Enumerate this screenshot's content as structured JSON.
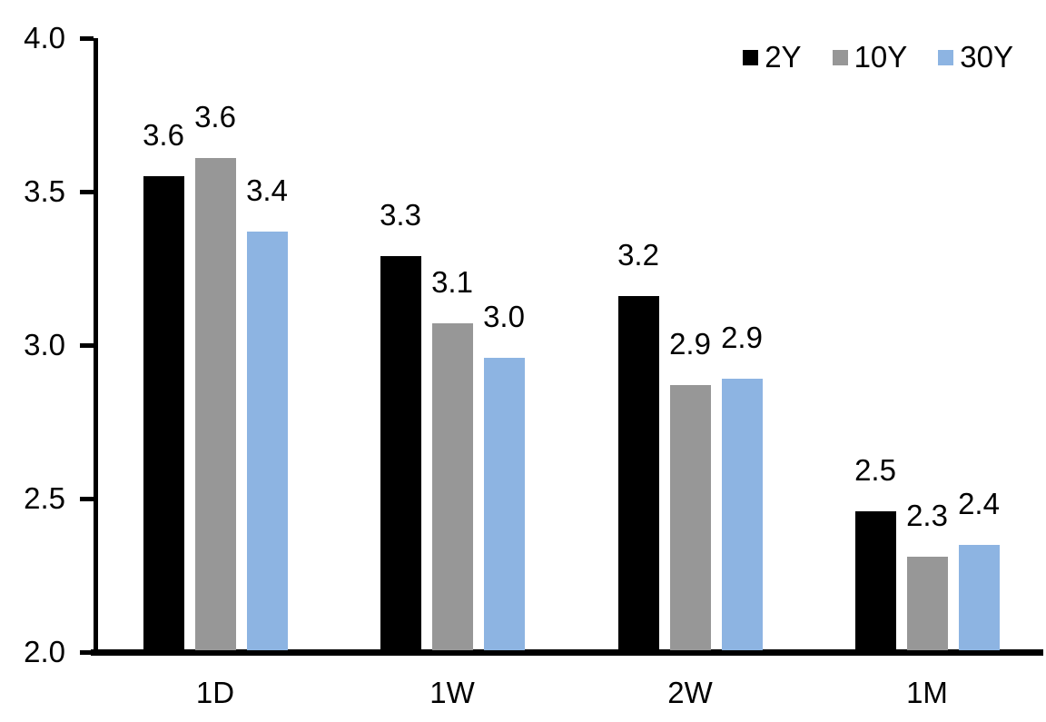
{
  "chart_data": {
    "type": "bar",
    "title": "",
    "xlabel": "",
    "ylabel": "",
    "categories": [
      "1D",
      "1W",
      "2W",
      "1M"
    ],
    "series": [
      {
        "name": "2Y",
        "color": "#000000",
        "values": [
          3.55,
          3.29,
          3.16,
          2.46
        ],
        "labels": [
          "3.6",
          "3.3",
          "3.2",
          "2.5"
        ]
      },
      {
        "name": "10Y",
        "color": "#979797",
        "values": [
          3.61,
          3.07,
          2.87,
          2.31
        ],
        "labels": [
          "3.6",
          "3.1",
          "2.9",
          "2.3"
        ]
      },
      {
        "name": "30Y",
        "color": "#8DB4E2",
        "values": [
          3.37,
          2.96,
          2.89,
          2.35
        ],
        "labels": [
          "3.4",
          "3.0",
          "2.9",
          "2.4"
        ]
      }
    ],
    "ylim": [
      2.0,
      4.0
    ],
    "ytick_values": [
      2.0,
      2.5,
      3.0,
      3.5,
      4.0
    ],
    "ytick_labels": [
      "2.0",
      "2.5",
      "3.0",
      "3.5",
      "4.0"
    ],
    "grid": false,
    "legend_position": "top-right",
    "axis_color": "#000000",
    "text_color": "#000000"
  }
}
